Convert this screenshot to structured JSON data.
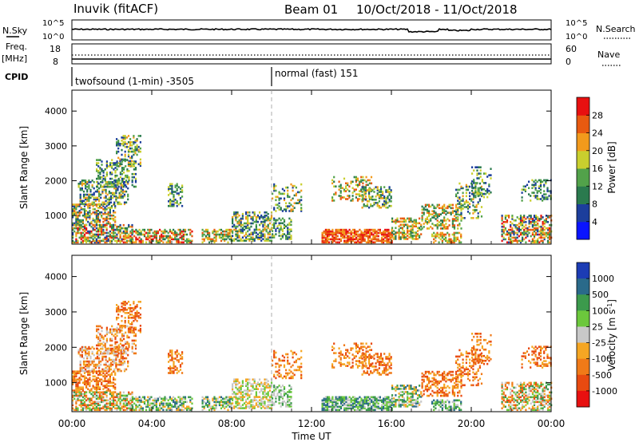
{
  "header": {
    "title": "Inuvik (fitACF)",
    "beam": "Beam 01",
    "dates": "10/Oct/2018 - 11/Oct/2018"
  },
  "strips": {
    "nsky_label": "N.Sky",
    "nsearch_label": "N.Search",
    "nsky_ticks": [
      "10^5",
      "10^0"
    ],
    "nsearch_ticks": [
      "10^5",
      "10^0"
    ],
    "freq_label": "Freq.",
    "freq_unit": "[MHz]",
    "freq_ticks": [
      "18",
      "8"
    ],
    "nave_label": "Nave",
    "nave_ticks": [
      "60",
      "0"
    ],
    "cpid_label": "CPID",
    "cpid_segments": [
      {
        "label": "twofsound (1-min) -3505",
        "start_hour": 0
      },
      {
        "label": "normal (fast) 151",
        "start_hour": 10
      }
    ]
  },
  "chart_data": [
    {
      "type": "heatmap",
      "title": "",
      "ylabel": "Slant Range [km]",
      "xlabel": "",
      "yticks": [
        "1000",
        "2000",
        "3000",
        "4000"
      ],
      "ylim": [
        180,
        4600
      ],
      "colorbar_label": "Power [dB]",
      "colorbar_ticks": [
        "4",
        "8",
        "12",
        "16",
        "20",
        "24",
        "28"
      ],
      "colorbar_colors": [
        "#0a14ff",
        "#1c3e9c",
        "#2a7a4e",
        "#52a24a",
        "#c9cf2e",
        "#f29a1c",
        "#e85a10",
        "#e81010"
      ]
    },
    {
      "type": "heatmap",
      "title": "",
      "ylabel": "Slant Range [km]",
      "xlabel": "Time UT",
      "xticks": [
        "00:00",
        "04:00",
        "08:00",
        "12:00",
        "16:00",
        "20:00",
        "00:00"
      ],
      "yticks": [
        "1000",
        "2000",
        "3000",
        "4000"
      ],
      "ylim": [
        180,
        4600
      ],
      "colorbar_label": "Velocity [m s^-1]",
      "colorbar_ticks": [
        "1000",
        "500",
        "100",
        "25",
        "-25",
        "-100",
        "-500",
        "-1000"
      ],
      "colorbar_colors": [
        "#1c3cb4",
        "#2a6a8a",
        "#3c9a4c",
        "#6cc83c",
        "#c8c8c8",
        "#f5a623",
        "#f07a18",
        "#e84a10",
        "#e81010"
      ]
    }
  ]
}
